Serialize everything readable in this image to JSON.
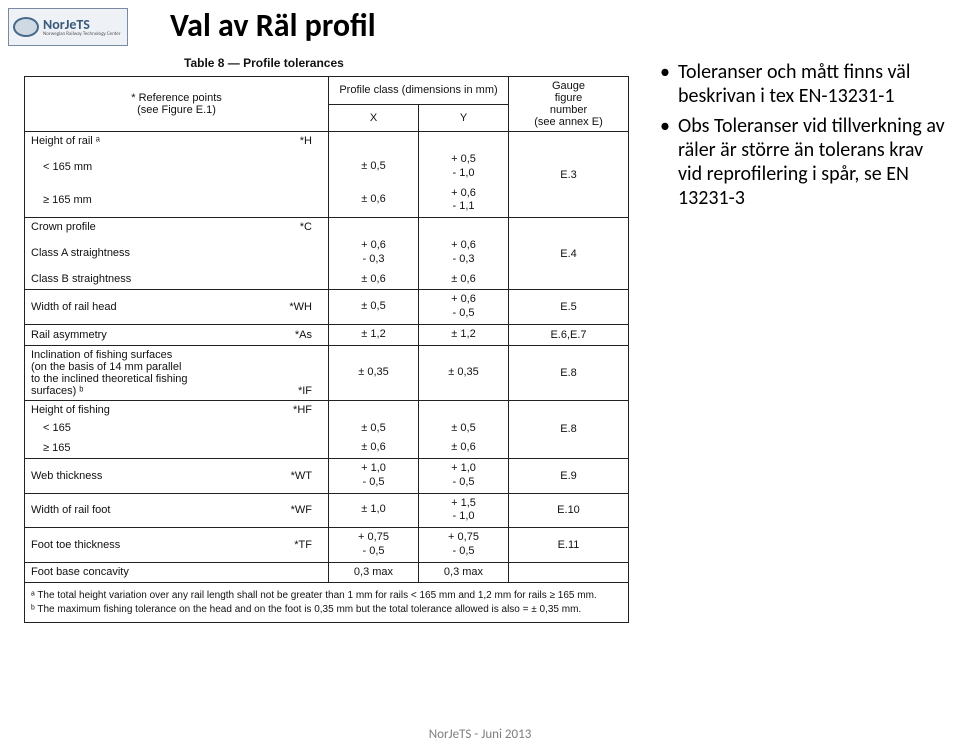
{
  "logo": {
    "main": "NorJeTS",
    "sub": "Norwegian Railway Technology Center"
  },
  "title": "Val av Räl profil",
  "table": {
    "caption": "Table 8 — Profile tolerances",
    "head_ref": "* Reference points\n(see Figure E.1)",
    "head_profile": "Profile class (dimensions in mm)",
    "head_gauge": "Gauge\nfigure\nnumber\n(see annex E)",
    "head_x": "X",
    "head_y": "Y",
    "rows": [
      {
        "ref": "Height of rail ᵃ",
        "sym": "*H",
        "sub": [
          {
            "label": "< 165 mm",
            "x": "± 0,5",
            "y": "+ 0,5\n- 1,0"
          },
          {
            "label": "≥ 165 mm",
            "x": "± 0,6",
            "y": "+ 0,6\n- 1,1"
          }
        ],
        "gauge": "E.3"
      },
      {
        "ref": "Crown profile",
        "sym": "*C",
        "x": "",
        "y": "",
        "gauge": "",
        "noborder": true
      },
      {
        "ref": "Class A straightness",
        "sym": "",
        "x": "+ 0,6\n- 0,3",
        "y": "+ 0,6\n- 0,3",
        "gauge": "E.4"
      },
      {
        "ref": "Class B straightness",
        "sym": "",
        "x": "± 0,6",
        "y": "± 0,6",
        "gauge": "",
        "merge_gauge": true
      },
      {
        "ref": "Width of rail head",
        "sym": "*WH",
        "x": "± 0,5",
        "y": "+ 0,6\n- 0,5",
        "gauge": "E.5"
      },
      {
        "ref": "Rail asymmetry",
        "sym": "*As",
        "x": "± 1,2",
        "y": "± 1,2",
        "gauge": "E.6,E.7"
      },
      {
        "ref": "Inclination of fishing surfaces\n(on the basis of 14 mm parallel\nto the inclined theoretical fishing\nsurfaces) ᵇ",
        "sym": "*IF",
        "x": "± 0,35",
        "y": "± 0,35",
        "gauge": "E.8"
      },
      {
        "ref": "Height of fishing",
        "sym": "*HF",
        "sub": [
          {
            "label": "< 165",
            "x": "± 0,5",
            "y": "± 0,5"
          },
          {
            "label": "≥ 165",
            "x": "± 0,6",
            "y": "± 0,6"
          }
        ],
        "gauge": "E.8"
      },
      {
        "ref": "Web thickness",
        "sym": "*WT",
        "x": "+ 1,0\n- 0,5",
        "y": "+ 1,0\n- 0,5",
        "gauge": "E.9"
      },
      {
        "ref": "Width of rail foot",
        "sym": "*WF",
        "x": "± 1,0",
        "y": "+ 1,5\n- 1,0",
        "gauge": "E.10"
      },
      {
        "ref": "Foot toe thickness",
        "sym": "*TF",
        "x": "+ 0,75\n- 0,5",
        "y": "+ 0,75\n- 0,5",
        "gauge": "E.11"
      },
      {
        "ref": "Foot base concavity",
        "sym": "",
        "x": "0,3 max",
        "y": "0,3 max",
        "gauge": ""
      }
    ],
    "footnote_a": "ᵃ   The total height variation over any rail length shall not be greater than 1 mm for rails < 165 mm and 1,2 mm for rails ≥ 165 mm.",
    "footnote_b": "ᵇ   The maximum fishing tolerance on the head and on the foot is 0,35 mm but the total tolerance allowed is also = ± 0,35 mm."
  },
  "bullets": [
    "Toleranser och mått finns väl beskrivan i tex EN-13231-1",
    "Obs Toleranser vid tillverkning av räler är större än tolerans krav vid reprofilering i spår, se EN 13231-3"
  ],
  "footer": "NorJeTS - Juni 2013"
}
